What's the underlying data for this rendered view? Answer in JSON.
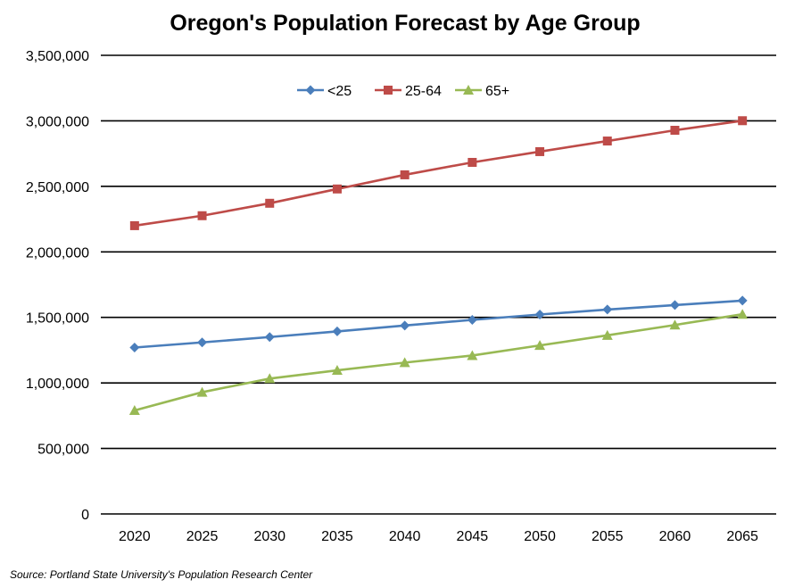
{
  "chart_data": {
    "type": "line",
    "title": "Oregon's Population Forecast by Age Group",
    "xlabel": "",
    "ylabel": "",
    "categories": [
      "2020",
      "2025",
      "2030",
      "2035",
      "2040",
      "2045",
      "2050",
      "2055",
      "2060",
      "2065"
    ],
    "ylim": [
      0,
      3500000
    ],
    "yticks": [
      0,
      500000,
      1000000,
      1500000,
      2000000,
      2500000,
      3000000,
      3500000
    ],
    "ytick_labels": [
      "0",
      "500,000",
      "1,000,000",
      "1,500,000",
      "2,000,000",
      "2,500,000",
      "3,000,000",
      "3,500,000"
    ],
    "grid": "horizontal",
    "legend_position": "top",
    "series": [
      {
        "name": "<25",
        "color": "#4a7ebb",
        "marker": "diamond",
        "values": [
          1270000,
          1309000,
          1350000,
          1393000,
          1438000,
          1481000,
          1522000,
          1560000,
          1594000,
          1628000
        ]
      },
      {
        "name": "25-64",
        "color": "#be4b48",
        "marker": "square",
        "values": [
          2200000,
          2276000,
          2371000,
          2480000,
          2588000,
          2683000,
          2765000,
          2846000,
          2928000,
          3001000
        ]
      },
      {
        "name": "65+",
        "color": "#98b954",
        "marker": "triangle",
        "values": [
          790000,
          929000,
          1033000,
          1096000,
          1155000,
          1209000,
          1286000,
          1363000,
          1442000,
          1524000
        ]
      }
    ]
  },
  "source": "Source:  Portland State University's  Population  Research  Center"
}
